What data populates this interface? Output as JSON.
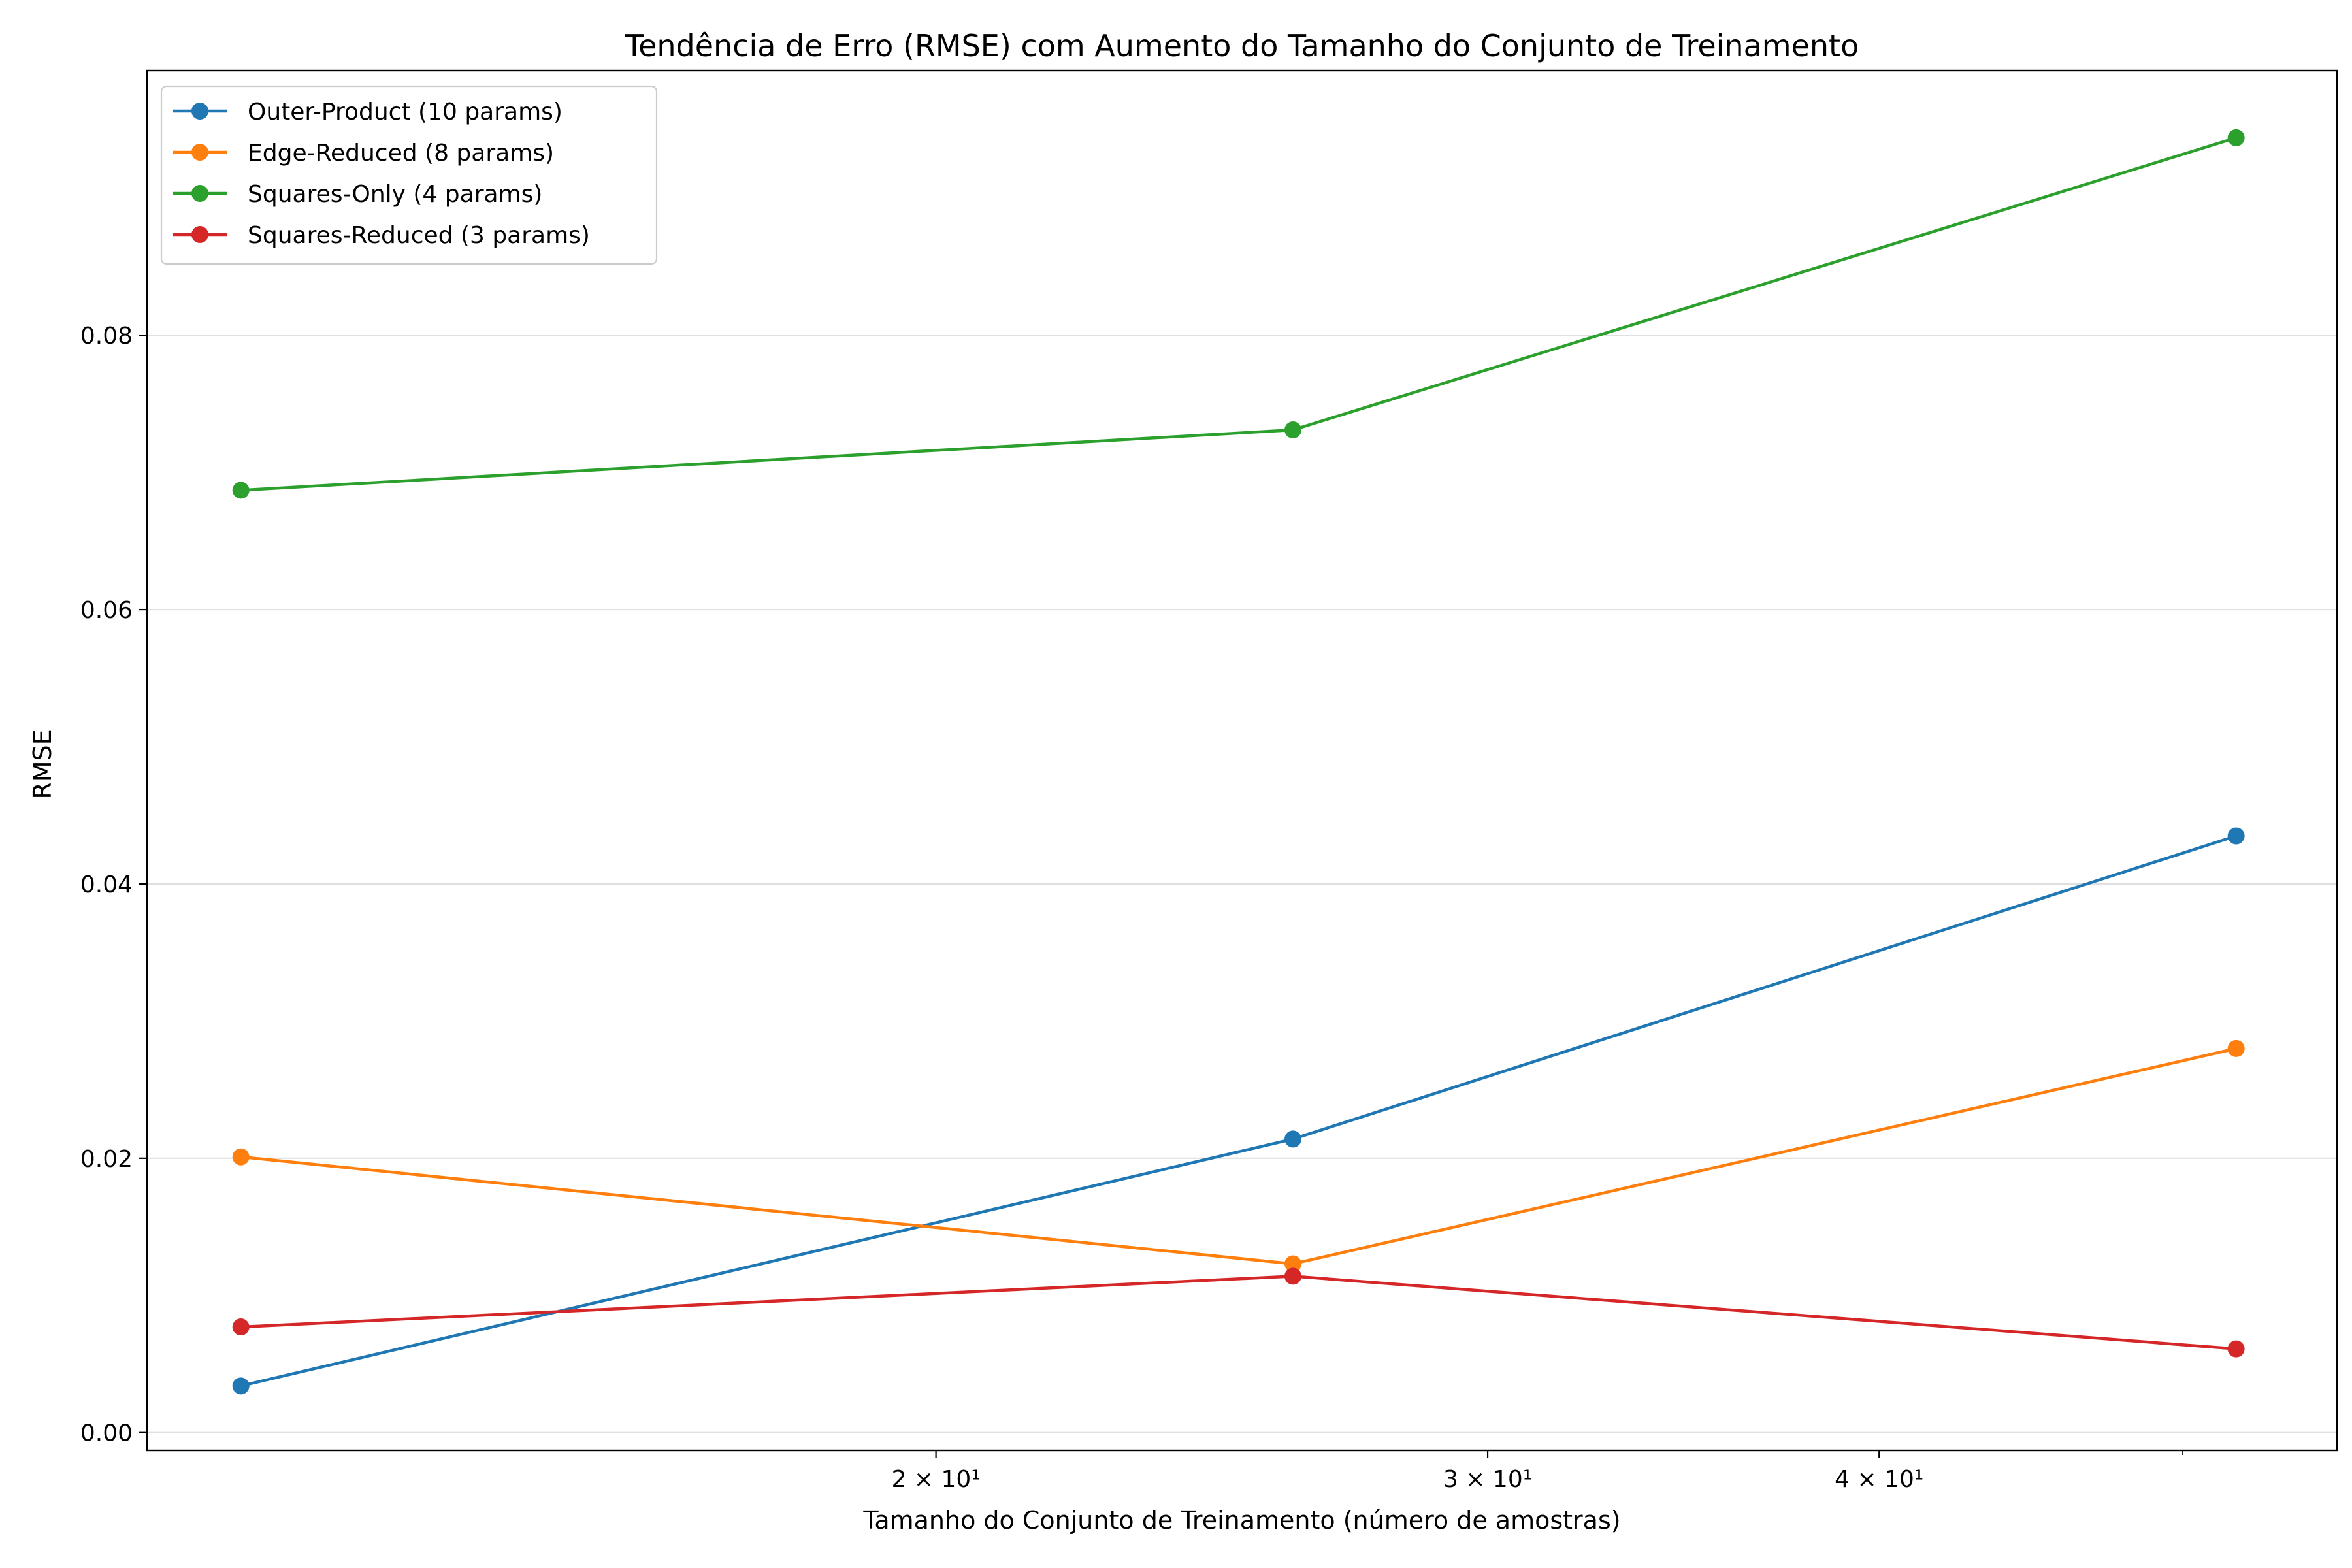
{
  "chart_data": {
    "type": "line",
    "title": "Tendência de Erro (RMSE) com Aumento do Tamanho do Conjunto de Treinamento",
    "xlabel": "Tamanho do Conjunto de Treinamento (número de amostras)",
    "ylabel": "RMSE",
    "xscale": "log",
    "x": [
      12,
      26,
      52
    ],
    "xlim": [
      11.2,
      56
    ],
    "ylim": [
      -0.0013,
      0.0993
    ],
    "xticks": [
      {
        "value": 20,
        "label": "2 × 10¹"
      },
      {
        "value": 30,
        "label": "3 × 10¹"
      },
      {
        "value": 40,
        "label": "4 × 10¹"
      }
    ],
    "yticks": [
      {
        "value": 0.0,
        "label": "0.00"
      },
      {
        "value": 0.02,
        "label": "0.02"
      },
      {
        "value": 0.04,
        "label": "0.04"
      },
      {
        "value": 0.06,
        "label": "0.06"
      },
      {
        "value": 0.08,
        "label": "0.08"
      }
    ],
    "grid": "horizontal",
    "legend_position": "top-left",
    "series": [
      {
        "name": "Outer-Product (10 params)",
        "color": "#1f77b4",
        "values": [
          0.0034,
          0.0214,
          0.0435
        ]
      },
      {
        "name": "Edge-Reduced (8 params)",
        "color": "#ff7f0e",
        "values": [
          0.0201,
          0.0123,
          0.028
        ]
      },
      {
        "name": "Squares-Only (4 params)",
        "color": "#2ca02c",
        "values": [
          0.0687,
          0.0731,
          0.0944
        ]
      },
      {
        "name": "Squares-Reduced (3 params)",
        "color": "#d62728",
        "values": [
          0.0077,
          0.0114,
          0.0061
        ]
      }
    ]
  }
}
